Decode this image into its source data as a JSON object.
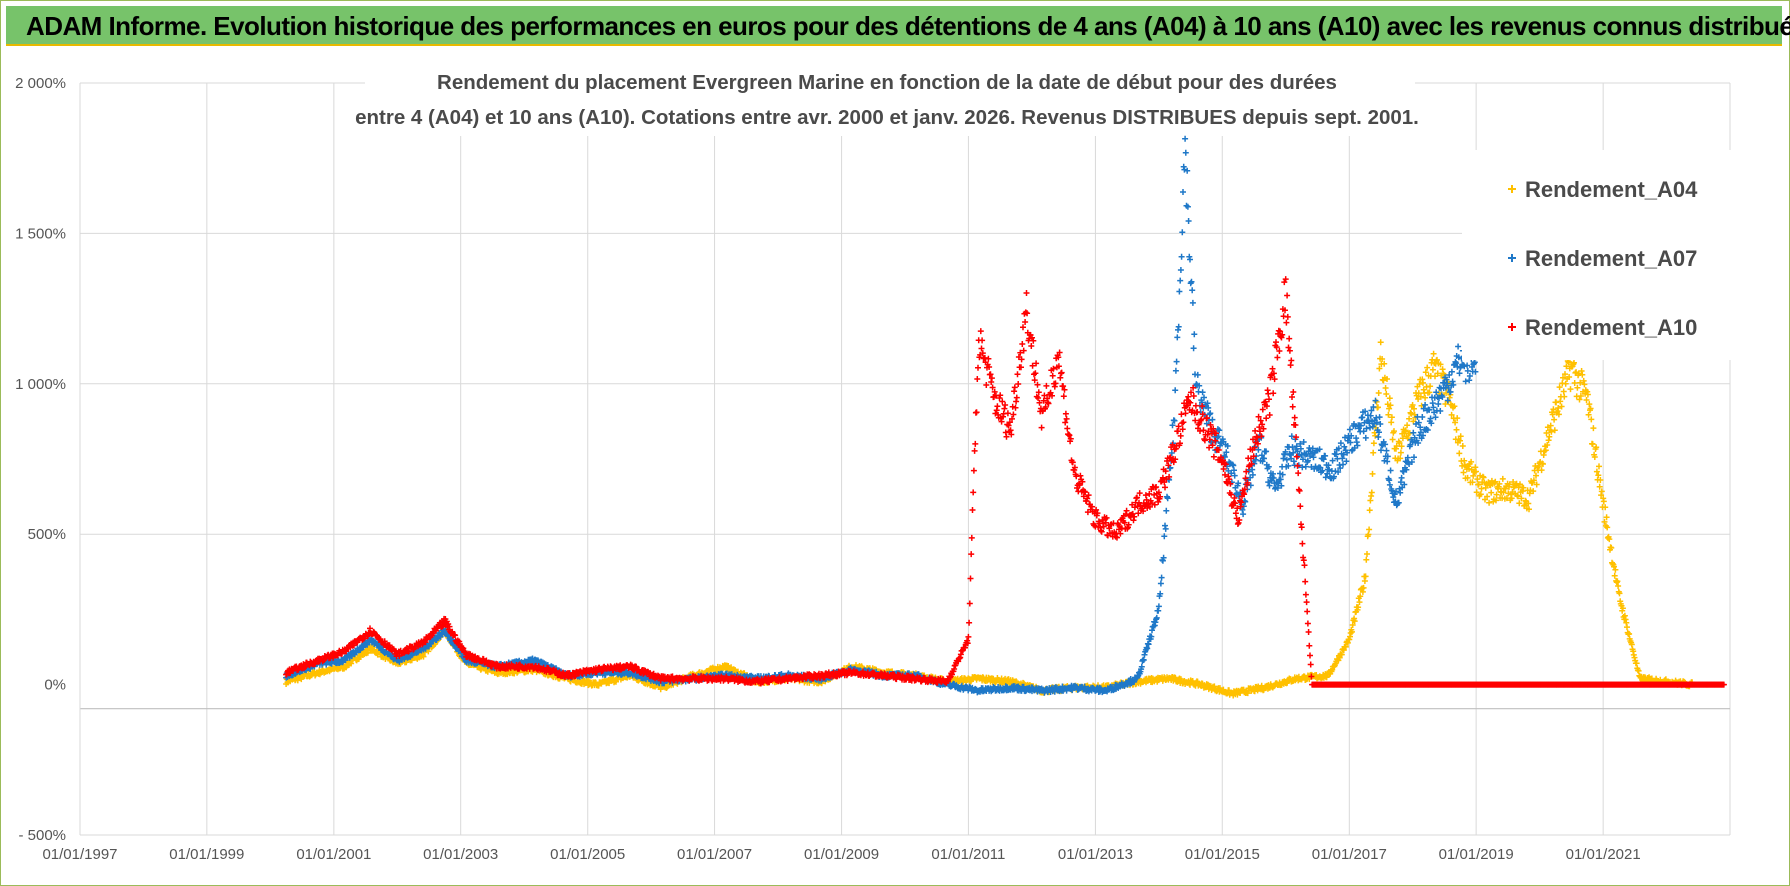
{
  "page": {
    "banner_title": "ADAM Informe. Evolution historique des performances en euros pour des détentions de 4 ans (A04) à 10 ans (A10) avec les revenus connus distribués",
    "banner_color": "#77c36a"
  },
  "chart_data": {
    "type": "scatter",
    "title_line1": "Rendement du placement Evergreen Marine  en fonction de la date de début pour des durées",
    "title_line2": "entre 4 (A04) et 10 ans (A10).  Cotations entre avr. 2000 et janv. 2026. Revenus DISTRIBUES depuis sept. 2001.",
    "xlabel": "",
    "ylabel": "",
    "x_range": [
      "1997-01-01",
      "2023-01-01"
    ],
    "x_tick_labels": [
      "01/01/1997",
      "01/01/1999",
      "01/01/2001",
      "01/01/2003",
      "01/01/2005",
      "01/01/2007",
      "01/01/2009",
      "01/01/2011",
      "01/01/2013",
      "01/01/2015",
      "01/01/2017",
      "01/01/2019",
      "01/01/2021"
    ],
    "ylim": [
      -500,
      2000
    ],
    "y_tick_labels": [
      "- 500%",
      "0%",
      "500%",
      "1 000%",
      "1 500%",
      "2 000%"
    ],
    "y_ticks": [
      -500,
      0,
      500,
      1000,
      1500,
      2000
    ],
    "grid": true,
    "legend_position": "right",
    "marker": "+",
    "series": [
      {
        "name": "Rendement_A04",
        "color": "#ffc000",
        "points": [
          [
            "2000-04-01",
            10
          ],
          [
            "2000-10-01",
            40
          ],
          [
            "2001-03-01",
            60
          ],
          [
            "2001-08-01",
            120
          ],
          [
            "2002-01-01",
            70
          ],
          [
            "2002-06-01",
            100
          ],
          [
            "2002-10-01",
            180
          ],
          [
            "2003-02-01",
            70
          ],
          [
            "2003-08-01",
            40
          ],
          [
            "2004-03-01",
            50
          ],
          [
            "2004-09-01",
            20
          ],
          [
            "2005-03-01",
            0
          ],
          [
            "2005-09-01",
            30
          ],
          [
            "2006-03-01",
            -10
          ],
          [
            "2006-09-01",
            30
          ],
          [
            "2007-03-01",
            60
          ],
          [
            "2007-09-01",
            10
          ],
          [
            "2008-03-01",
            20
          ],
          [
            "2008-09-01",
            10
          ],
          [
            "2009-03-01",
            60
          ],
          [
            "2009-09-01",
            40
          ],
          [
            "2010-03-01",
            30
          ],
          [
            "2010-09-01",
            10
          ],
          [
            "2011-03-01",
            20
          ],
          [
            "2011-09-01",
            10
          ],
          [
            "2012-03-01",
            -20
          ],
          [
            "2012-09-01",
            -10
          ],
          [
            "2013-03-01",
            -10
          ],
          [
            "2013-09-01",
            10
          ],
          [
            "2014-03-01",
            20
          ],
          [
            "2014-09-01",
            0
          ],
          [
            "2015-03-01",
            -30
          ],
          [
            "2015-09-01",
            -10
          ],
          [
            "2016-03-01",
            20
          ],
          [
            "2016-09-01",
            30
          ],
          [
            "2017-01-01",
            150
          ],
          [
            "2017-04-01",
            350
          ],
          [
            "2017-07-01",
            1100
          ],
          [
            "2017-10-01",
            750
          ],
          [
            "2018-02-01",
            950
          ],
          [
            "2018-05-01",
            1050
          ],
          [
            "2018-08-01",
            950
          ],
          [
            "2018-11-01",
            720
          ],
          [
            "2019-03-01",
            640
          ],
          [
            "2019-07-01",
            650
          ],
          [
            "2019-11-01",
            620
          ],
          [
            "2020-03-01",
            850
          ],
          [
            "2020-07-01",
            1050
          ],
          [
            "2020-10-01",
            950
          ],
          [
            "2021-01-01",
            600
          ],
          [
            "2021-04-01",
            300
          ],
          [
            "2021-08-01",
            20
          ],
          [
            "2022-01-01",
            10
          ],
          [
            "2022-06-01",
            0
          ]
        ]
      },
      {
        "name": "Rendement_A07",
        "color": "#1f78c8",
        "points": [
          [
            "2000-04-01",
            30
          ],
          [
            "2000-10-01",
            70
          ],
          [
            "2001-03-01",
            80
          ],
          [
            "2001-08-01",
            150
          ],
          [
            "2002-01-01",
            80
          ],
          [
            "2002-06-01",
            120
          ],
          [
            "2002-10-01",
            180
          ],
          [
            "2003-02-01",
            80
          ],
          [
            "2003-08-01",
            60
          ],
          [
            "2004-03-01",
            80
          ],
          [
            "2004-09-01",
            30
          ],
          [
            "2005-03-01",
            40
          ],
          [
            "2005-09-01",
            40
          ],
          [
            "2006-03-01",
            10
          ],
          [
            "2006-09-01",
            20
          ],
          [
            "2007-03-01",
            30
          ],
          [
            "2007-09-01",
            20
          ],
          [
            "2008-03-01",
            30
          ],
          [
            "2008-09-01",
            20
          ],
          [
            "2009-03-01",
            50
          ],
          [
            "2009-09-01",
            30
          ],
          [
            "2010-03-01",
            30
          ],
          [
            "2010-09-01",
            0
          ],
          [
            "2011-03-01",
            -20
          ],
          [
            "2011-09-01",
            -10
          ],
          [
            "2012-03-01",
            -20
          ],
          [
            "2012-09-01",
            -10
          ],
          [
            "2013-03-01",
            -20
          ],
          [
            "2013-09-01",
            20
          ],
          [
            "2014-01-01",
            250
          ],
          [
            "2014-04-01",
            900
          ],
          [
            "2014-06-01",
            1800
          ],
          [
            "2014-08-01",
            1000
          ],
          [
            "2014-11-01",
            850
          ],
          [
            "2015-02-01",
            750
          ],
          [
            "2015-05-01",
            600
          ],
          [
            "2015-08-01",
            800
          ],
          [
            "2015-11-01",
            650
          ],
          [
            "2016-02-01",
            780
          ],
          [
            "2016-06-01",
            750
          ],
          [
            "2016-10-01",
            720
          ],
          [
            "2017-02-01",
            830
          ],
          [
            "2017-06-01",
            900
          ],
          [
            "2017-10-01",
            600
          ],
          [
            "2018-02-01",
            850
          ],
          [
            "2018-06-01",
            950
          ],
          [
            "2018-10-01",
            1080
          ],
          [
            "2019-01-01",
            1050
          ]
        ]
      },
      {
        "name": "Rendement_A10",
        "color": "#ff0000",
        "points": [
          [
            "2000-04-01",
            40
          ],
          [
            "2000-10-01",
            80
          ],
          [
            "2001-03-01",
            110
          ],
          [
            "2001-08-01",
            180
          ],
          [
            "2002-01-01",
            100
          ],
          [
            "2002-06-01",
            140
          ],
          [
            "2002-10-01",
            210
          ],
          [
            "2003-02-01",
            100
          ],
          [
            "2003-08-01",
            60
          ],
          [
            "2004-03-01",
            60
          ],
          [
            "2004-09-01",
            30
          ],
          [
            "2005-03-01",
            50
          ],
          [
            "2005-09-01",
            60
          ],
          [
            "2006-03-01",
            20
          ],
          [
            "2006-09-01",
            20
          ],
          [
            "2007-03-01",
            20
          ],
          [
            "2007-09-01",
            10
          ],
          [
            "2008-03-01",
            20
          ],
          [
            "2008-09-01",
            30
          ],
          [
            "2009-03-01",
            40
          ],
          [
            "2009-09-01",
            30
          ],
          [
            "2010-03-01",
            20
          ],
          [
            "2010-09-01",
            10
          ],
          [
            "2011-01-01",
            150
          ],
          [
            "2011-03-01",
            1150
          ],
          [
            "2011-06-01",
            950
          ],
          [
            "2011-09-01",
            850
          ],
          [
            "2011-12-01",
            1250
          ],
          [
            "2012-03-01",
            880
          ],
          [
            "2012-06-01",
            1100
          ],
          [
            "2012-09-01",
            700
          ],
          [
            "2013-01-01",
            550
          ],
          [
            "2013-05-01",
            500
          ],
          [
            "2013-09-01",
            600
          ],
          [
            "2014-01-01",
            640
          ],
          [
            "2014-04-01",
            780
          ],
          [
            "2014-07-01",
            950
          ],
          [
            "2014-10-01",
            850
          ],
          [
            "2015-01-01",
            750
          ],
          [
            "2015-04-01",
            550
          ],
          [
            "2015-07-01",
            800
          ],
          [
            "2015-10-01",
            950
          ],
          [
            "2016-01-01",
            1300
          ],
          [
            "2016-06-01",
            0
          ],
          [
            "2017-01-01",
            0
          ],
          [
            "2018-01-01",
            0
          ],
          [
            "2019-01-01",
            0
          ],
          [
            "2020-01-01",
            0
          ],
          [
            "2021-01-01",
            0
          ],
          [
            "2022-01-01",
            0
          ],
          [
            "2022-12-01",
            0
          ]
        ]
      }
    ]
  }
}
